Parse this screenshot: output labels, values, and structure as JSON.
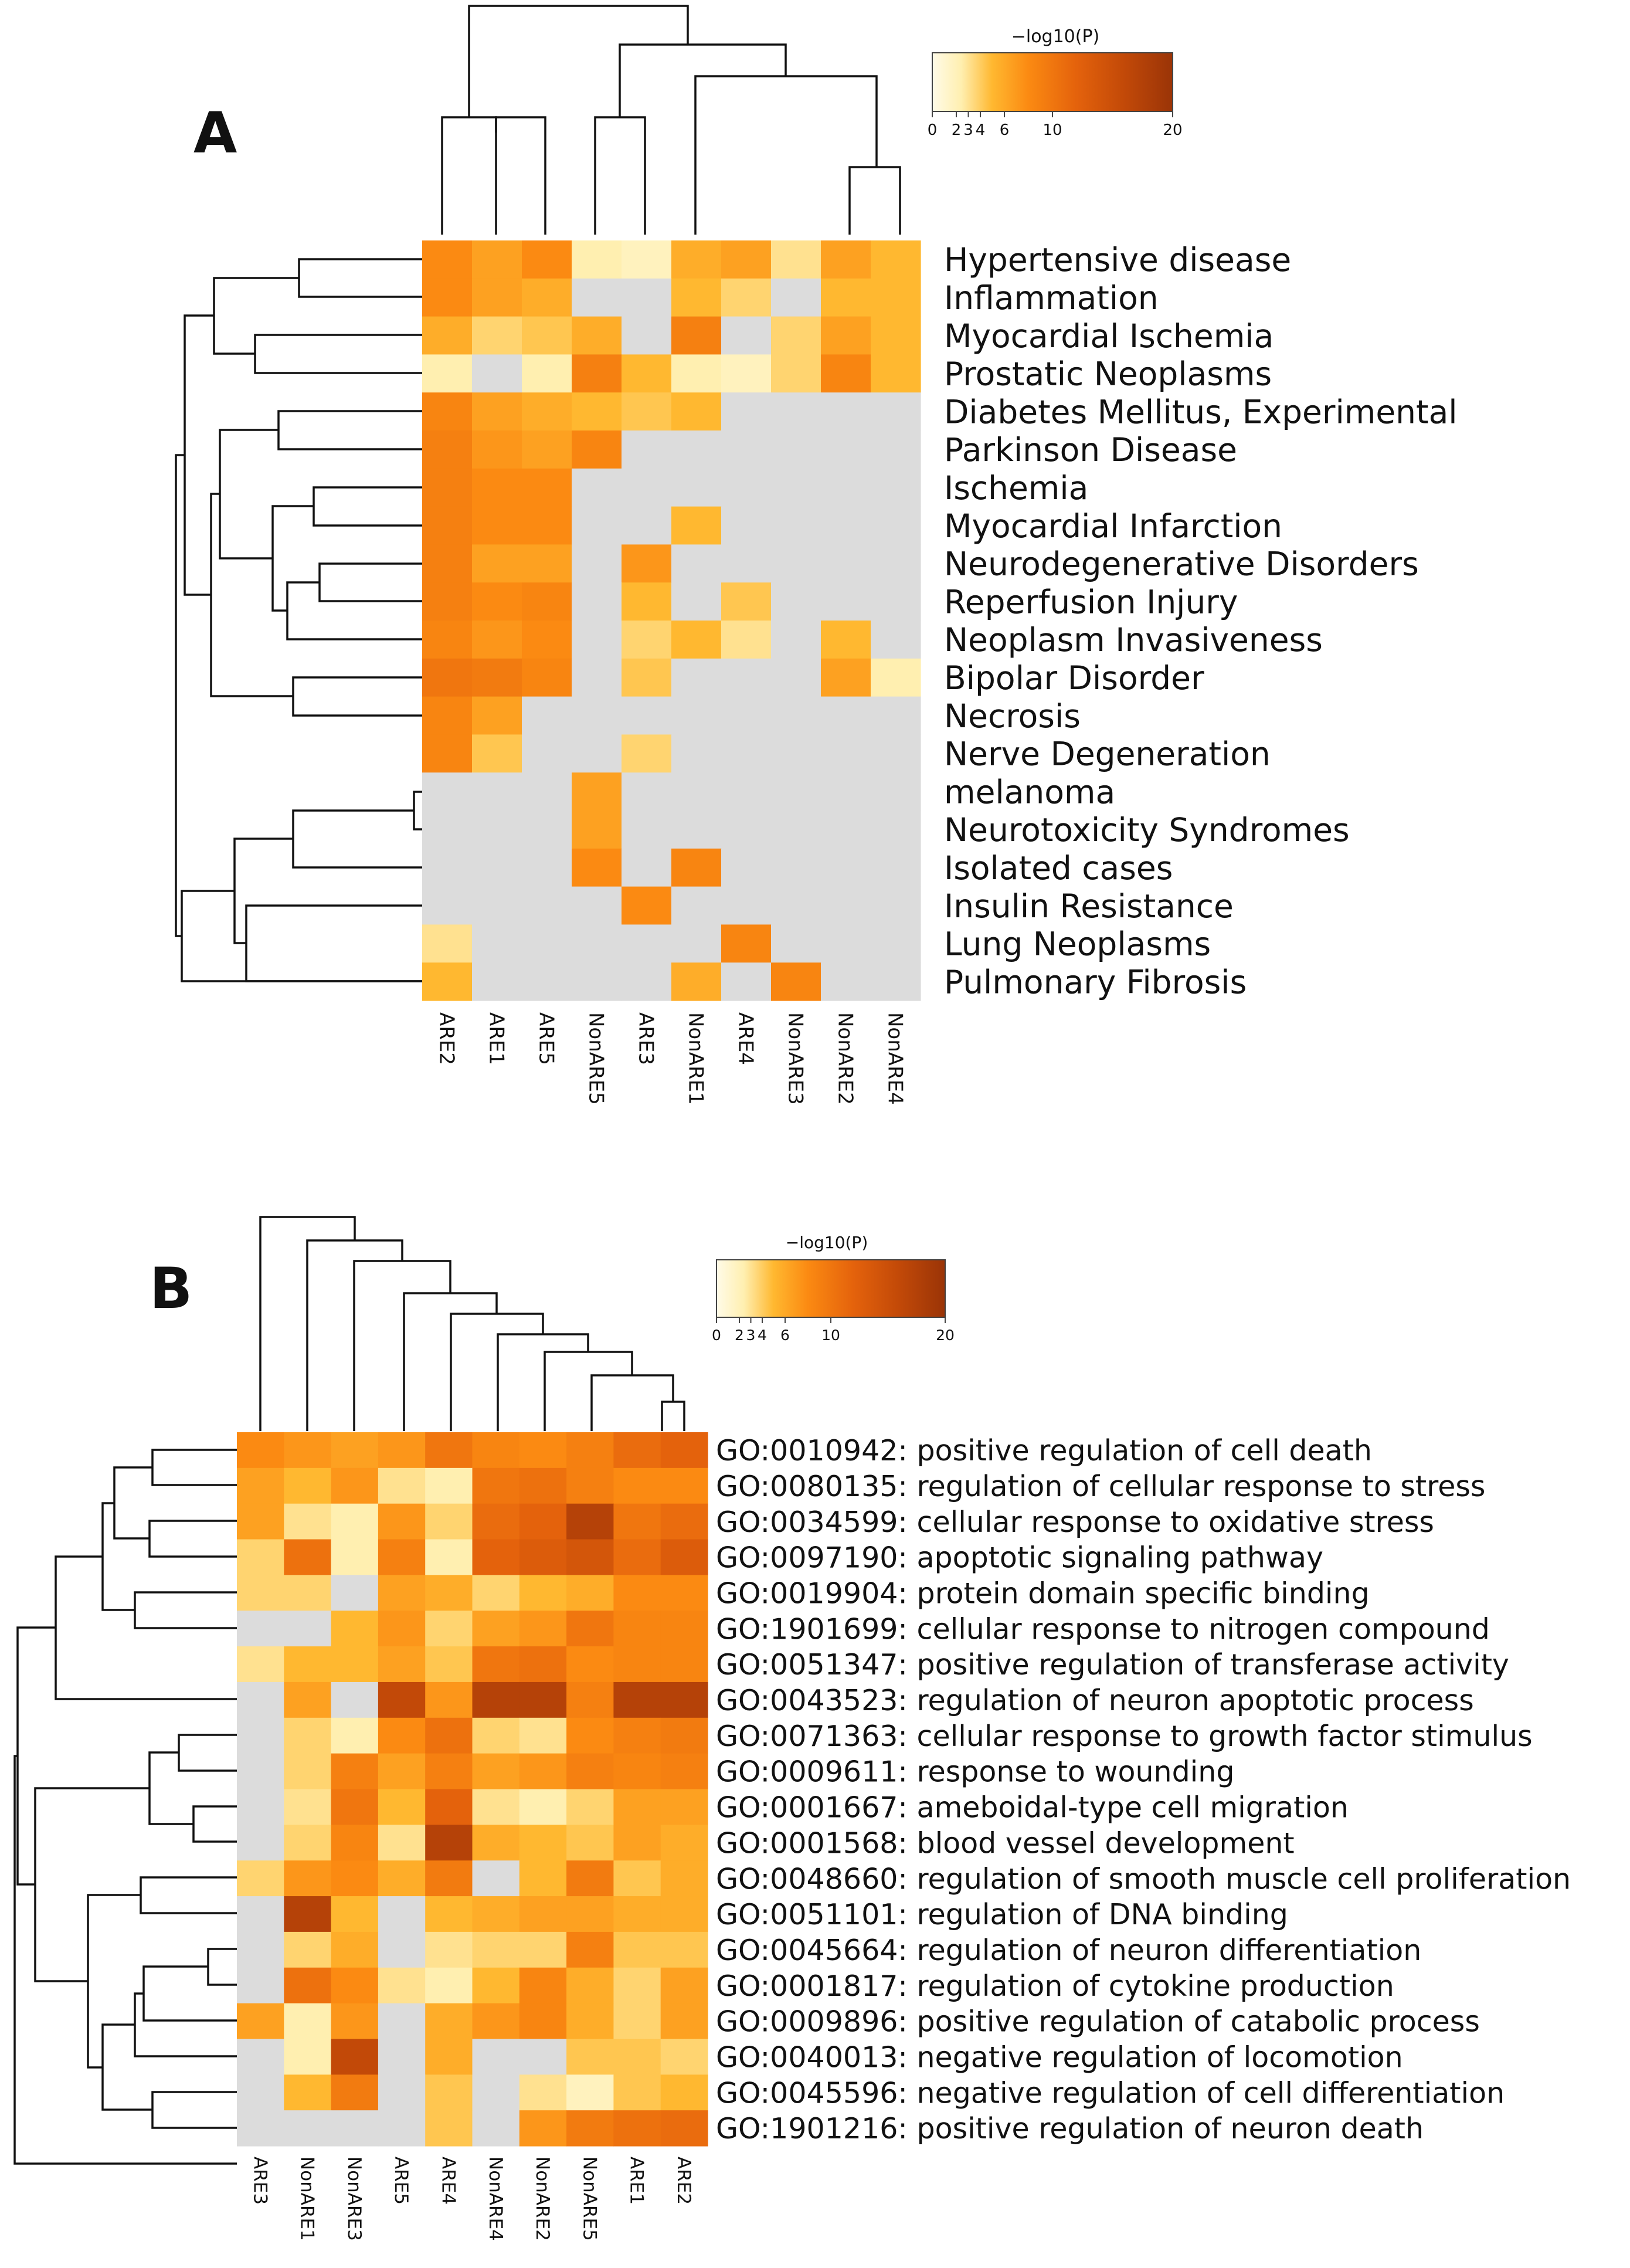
{
  "chart_data": [
    {
      "panel": "A",
      "type": "heatmap",
      "title": "",
      "colorbar": {
        "label": "−log10(P)",
        "ticks": [
          "0",
          "2",
          "3",
          "4",
          "6",
          "10",
          "20"
        ],
        "range": [
          0,
          20
        ]
      },
      "columns": [
        "ARE2",
        "ARE1",
        "ARE5",
        "NonARE5",
        "ARE3",
        "NonARE1",
        "ARE4",
        "NonARE3",
        "NonARE2",
        "NonARE4"
      ],
      "rows": [
        "Hypertensive disease",
        "Inflammation",
        "Myocardial Ischemia",
        "Prostatic Neoplasms",
        "Diabetes Mellitus, Experimental",
        "Parkinson Disease",
        "Ischemia",
        "Myocardial Infarction",
        "Neurodegenerative Disorders",
        "Reperfusion Injury",
        "Neoplasm Invasiveness",
        "Bipolar Disorder",
        "Necrosis",
        "Nerve Degeneration",
        "melanoma",
        "Neurotoxicity Syndromes",
        "Isolated cases",
        "Insulin Resistance",
        "Lung Neoplasms",
        "Pulmonary Fibrosis"
      ],
      "values": [
        [
          6,
          5,
          6,
          2,
          1.5,
          4.5,
          5,
          2.5,
          5,
          4
        ],
        [
          6,
          5,
          4.5,
          null,
          null,
          4,
          3,
          null,
          4,
          4
        ],
        [
          4.5,
          3,
          3.5,
          4.5,
          null,
          7,
          null,
          3,
          5,
          4
        ],
        [
          2,
          null,
          2,
          7,
          4,
          2,
          1.5,
          3,
          6.5,
          4
        ],
        [
          6.5,
          5,
          4.5,
          4,
          3.5,
          4,
          null,
          null,
          null,
          null
        ],
        [
          7,
          5.5,
          5,
          6.5,
          null,
          null,
          null,
          null,
          null,
          null
        ],
        [
          7,
          6,
          6,
          null,
          null,
          null,
          null,
          null,
          null,
          null
        ],
        [
          7,
          6,
          6,
          null,
          null,
          4,
          null,
          null,
          null,
          null
        ],
        [
          7,
          5,
          5,
          null,
          5.5,
          null,
          null,
          null,
          null,
          null
        ],
        [
          7,
          6,
          6.5,
          null,
          4,
          null,
          3.5,
          null,
          null,
          null
        ],
        [
          6.5,
          5.5,
          6,
          null,
          3,
          4,
          2.5,
          null,
          4,
          null
        ],
        [
          8,
          7.5,
          6.5,
          null,
          3.5,
          null,
          null,
          null,
          5,
          2
        ],
        [
          6.5,
          5,
          null,
          null,
          null,
          null,
          null,
          null,
          null,
          null
        ],
        [
          6.5,
          3.5,
          null,
          null,
          3,
          null,
          null,
          null,
          null,
          null
        ],
        [
          null,
          null,
          null,
          5,
          null,
          null,
          null,
          null,
          null,
          null
        ],
        [
          null,
          null,
          null,
          5,
          null,
          null,
          null,
          null,
          null,
          null
        ],
        [
          null,
          null,
          null,
          6,
          null,
          6.5,
          null,
          null,
          null,
          null
        ],
        [
          null,
          null,
          null,
          null,
          6,
          null,
          null,
          null,
          null,
          null
        ],
        [
          2.5,
          null,
          null,
          null,
          null,
          null,
          6.5,
          null,
          null,
          null
        ],
        [
          4,
          null,
          null,
          null,
          null,
          4.5,
          null,
          6.5,
          null,
          null
        ]
      ]
    },
    {
      "panel": "B",
      "type": "heatmap",
      "title": "",
      "colorbar": {
        "label": "−log10(P)",
        "ticks": [
          "0",
          "2",
          "3",
          "4",
          "6",
          "10",
          "20"
        ],
        "range": [
          0,
          20
        ]
      },
      "columns": [
        "ARE3",
        "NonARE1",
        "NonARE3",
        "ARE5",
        "ARE4",
        "NonARE4",
        "NonARE2",
        "NonARE5",
        "ARE1",
        "ARE2"
      ],
      "rows": [
        "GO:0010942: positive regulation of cell death",
        "GO:0080135: regulation of cellular response to stress",
        "GO:0034599: cellular response to oxidative stress",
        "GO:0097190: apoptotic signaling pathway",
        "GO:0019904: protein domain specific binding",
        "GO:1901699: cellular response to nitrogen compound",
        "GO:0051347: positive regulation of transferase activity",
        "GO:0043523: regulation of neuron apoptotic process",
        "GO:0071363: cellular response to growth factor stimulus",
        "GO:0009611: response to wounding",
        "GO:0001667: ameboidal-type cell migration",
        "GO:0001568: blood vessel development",
        "GO:0048660: regulation of smooth muscle cell proliferation",
        "GO:0051101: regulation of DNA binding",
        "GO:0045664: regulation of neuron differentiation",
        "GO:0001817: regulation of cytokine production",
        "GO:0009896: positive regulation of catabolic process",
        "GO:0040013: negative regulation of locomotion",
        "GO:0045596: negative regulation of cell differentiation",
        "GO:1901216: positive regulation of neuron death"
      ],
      "values": [
        [
          6,
          5.5,
          5,
          5.5,
          8,
          6.5,
          6,
          7,
          9,
          10
        ],
        [
          5,
          4,
          5.5,
          2.5,
          2,
          8,
          8.5,
          7,
          6,
          6
        ],
        [
          5,
          2.5,
          2,
          5.5,
          3,
          9,
          10,
          16,
          8,
          9
        ],
        [
          3,
          8.5,
          2,
          7,
          2,
          10,
          11,
          12,
          9,
          11
        ],
        [
          3,
          3,
          null,
          5,
          4.5,
          3,
          4,
          4.5,
          6,
          6
        ],
        [
          null,
          null,
          4,
          5.5,
          3,
          5,
          5.5,
          8,
          6.5,
          6.5
        ],
        [
          2.5,
          4,
          4,
          5,
          3.5,
          8,
          8.5,
          6,
          6.5,
          6.5
        ],
        [
          null,
          5,
          null,
          14,
          5.5,
          16,
          16,
          7,
          16,
          16
        ],
        [
          null,
          3,
          2,
          6,
          8.5,
          3,
          2.5,
          6,
          7,
          7.5
        ],
        [
          null,
          3,
          7,
          5,
          7,
          5,
          5.5,
          7,
          6.5,
          7
        ],
        [
          null,
          2.5,
          8,
          4,
          10,
          2.5,
          2,
          3,
          5,
          5
        ],
        [
          null,
          3,
          6.5,
          2.5,
          16,
          4.5,
          4,
          3.5,
          5,
          4.5
        ],
        [
          3,
          5.5,
          6,
          4.5,
          7.5,
          null,
          4,
          7.5,
          3.5,
          4.5
        ],
        [
          null,
          16,
          4,
          null,
          4,
          4.5,
          5,
          5,
          4.5,
          4.5
        ],
        [
          null,
          3,
          4.5,
          null,
          2.5,
          3,
          3,
          7,
          3.5,
          3.5
        ],
        [
          null,
          8.5,
          6,
          2.5,
          2,
          4,
          6.5,
          4.5,
          3,
          5
        ],
        [
          5,
          2,
          5.5,
          null,
          4.5,
          5.5,
          6.5,
          4.5,
          3,
          5
        ],
        [
          null,
          2,
          14,
          null,
          4.5,
          null,
          null,
          3.5,
          3.5,
          3
        ],
        [
          null,
          4,
          7.5,
          null,
          3.5,
          null,
          2.5,
          1.5,
          3.5,
          4
        ],
        [
          null,
          null,
          null,
          null,
          3.5,
          null,
          5.5,
          7.5,
          8.5,
          9
        ]
      ]
    }
  ]
}
